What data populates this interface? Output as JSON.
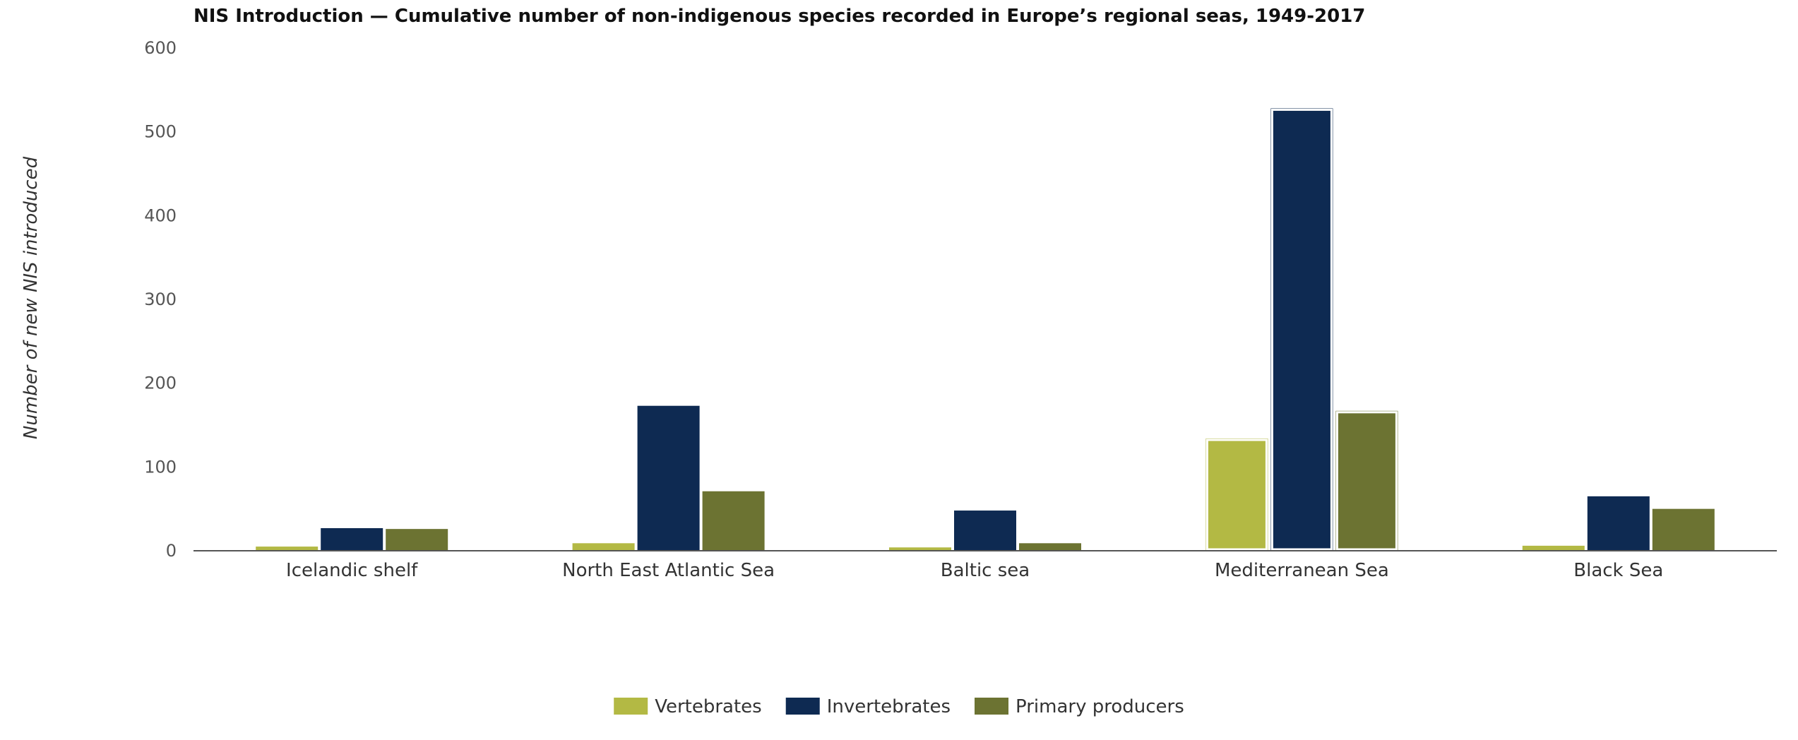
{
  "chart_data": {
    "type": "bar",
    "title": "NIS Introduction — Cumulative number of non-indigenous species recorded in Europe’s regional seas, 1949-2017",
    "xlabel": "",
    "ylabel": "Number of new NIS introduced",
    "ylim": [
      0,
      600
    ],
    "yticks": [
      0,
      100,
      200,
      300,
      400,
      500,
      600
    ],
    "categories": [
      "Icelandic shelf",
      "North East Atlantic Sea",
      "Baltic sea",
      "Mediterranean Sea",
      "Black Sea"
    ],
    "highlighted_category": "Mediterranean Sea",
    "legend_position": "bottom-center",
    "grid": false,
    "series": [
      {
        "name": "Vertebrates",
        "color": "#b3b944",
        "values": [
          5,
          9,
          4,
          134,
          6
        ]
      },
      {
        "name": "Invertebrates",
        "color": "#0e2a52",
        "values": [
          27,
          173,
          48,
          528,
          65
        ]
      },
      {
        "name": "Primary producers",
        "color": "#6c7332",
        "values": [
          26,
          71,
          9,
          167,
          50
        ]
      }
    ]
  }
}
